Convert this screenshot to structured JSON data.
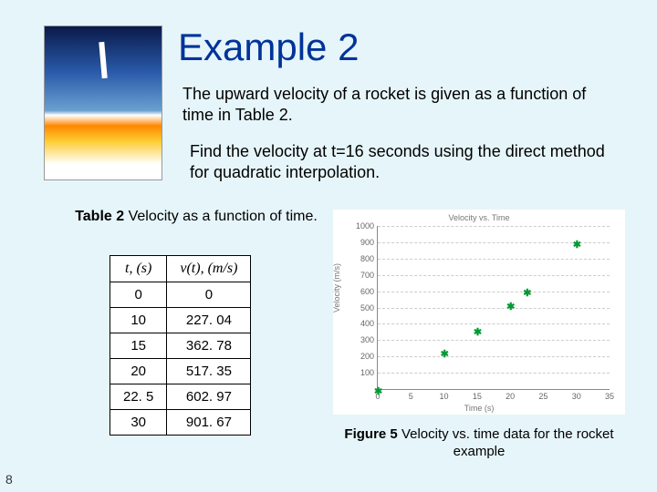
{
  "title": "Example 2",
  "desc1": "The upward velocity of a rocket is given as a function of time in Table 2.",
  "desc2": "Find the velocity at t=16 seconds using the direct method for quadratic interpolation.",
  "table": {
    "caption_bold": "Table 2",
    "caption_rest": " Velocity as a function of time.",
    "header_t": "t, (s)",
    "header_v": "v(t), (m/s)",
    "rows": [
      {
        "t": "0",
        "v": "0"
      },
      {
        "t": "10",
        "v": "227. 04"
      },
      {
        "t": "15",
        "v": "362. 78"
      },
      {
        "t": "20",
        "v": "517. 35"
      },
      {
        "t": "22. 5",
        "v": "602. 97"
      },
      {
        "t": "30",
        "v": "901. 67"
      }
    ]
  },
  "chart": {
    "type": "scatter",
    "title": "Velocity vs. Time",
    "xlabel": "Time (s)",
    "ylabel": "Velocity (m/s)",
    "xlim": [
      0,
      35
    ],
    "ylim": [
      0,
      1000
    ],
    "xtick_step": 5,
    "ytick_step": 100,
    "xticks": [
      0,
      5,
      10,
      15,
      20,
      25,
      30,
      35
    ],
    "yticks": [
      100,
      200,
      300,
      400,
      500,
      600,
      700,
      800,
      900,
      1000
    ],
    "points": [
      {
        "x": 0,
        "y": 0
      },
      {
        "x": 10,
        "y": 227.04
      },
      {
        "x": 15,
        "y": 362.78
      },
      {
        "x": 20,
        "y": 517.35
      },
      {
        "x": 22.5,
        "y": 602.97
      },
      {
        "x": 30,
        "y": 901.67
      }
    ],
    "marker_color": "#009933",
    "grid_color": "#cccccc",
    "background_color": "#ffffff",
    "axis_color": "#888888",
    "label_fontsize": 9,
    "title_fontsize": 9
  },
  "figure": {
    "caption_bold": "Figure 5",
    "caption_rest": " Velocity vs. time data for the rocket example"
  },
  "page_number": "8"
}
